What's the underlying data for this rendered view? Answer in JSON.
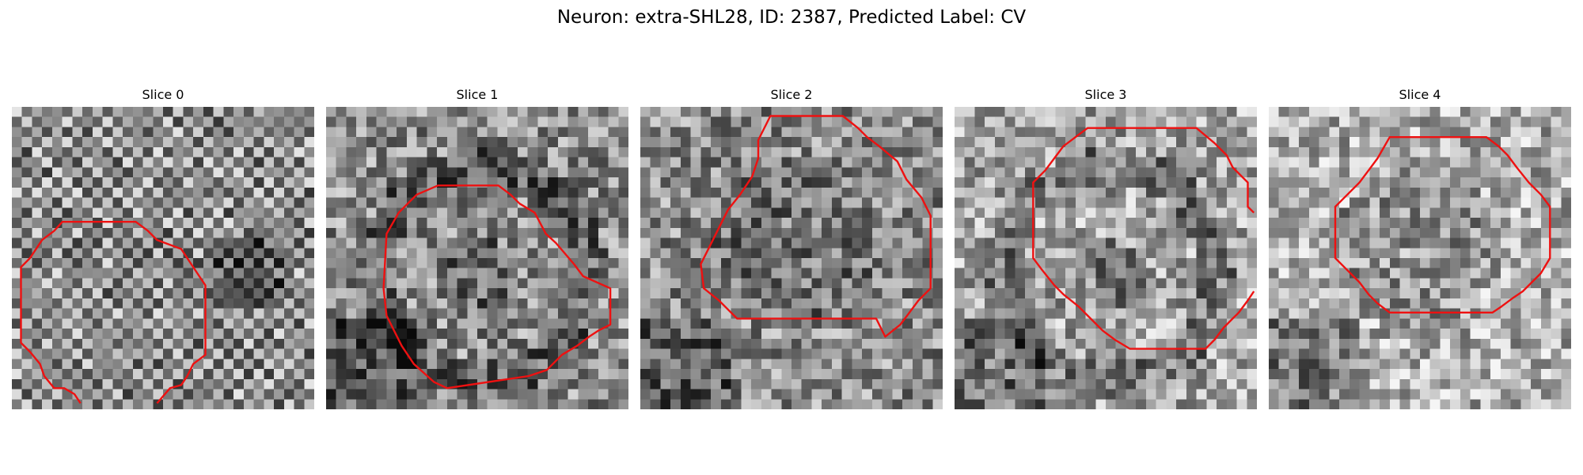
{
  "figure": {
    "title": "Neuron: extra-SHL28, ID: 2387, Predicted Label: CV"
  },
  "colors": {
    "contour": "#ee1111",
    "background": "#ffffff",
    "colormap": "gray"
  },
  "panels": [
    {
      "title": "Slice 0",
      "texture": "diagonal-checker",
      "contour_closed": false,
      "contour": [
        [
          0.227,
          0.98
        ],
        [
          0.207,
          0.95
        ],
        [
          0.173,
          0.93
        ],
        [
          0.14,
          0.93
        ],
        [
          0.107,
          0.89
        ],
        [
          0.093,
          0.85
        ],
        [
          0.06,
          0.81
        ],
        [
          0.03,
          0.78
        ],
        [
          0.03,
          0.53
        ],
        [
          0.06,
          0.5
        ],
        [
          0.1,
          0.44
        ],
        [
          0.14,
          0.41
        ],
        [
          0.167,
          0.38
        ],
        [
          0.2,
          0.38
        ],
        [
          0.41,
          0.38
        ],
        [
          0.45,
          0.41
        ],
        [
          0.48,
          0.44
        ],
        [
          0.56,
          0.47
        ],
        [
          0.6,
          0.53
        ],
        [
          0.64,
          0.59
        ],
        [
          0.64,
          0.82
        ],
        [
          0.6,
          0.85
        ],
        [
          0.58,
          0.89
        ],
        [
          0.56,
          0.92
        ],
        [
          0.523,
          0.93
        ],
        [
          0.48,
          0.98
        ]
      ]
    },
    {
      "title": "Slice 1",
      "texture": "ring",
      "contour_closed": true,
      "contour": [
        [
          0.37,
          0.26
        ],
        [
          0.57,
          0.26
        ],
        [
          0.61,
          0.29
        ],
        [
          0.64,
          0.32
        ],
        [
          0.69,
          0.35
        ],
        [
          0.727,
          0.42
        ],
        [
          0.76,
          0.45
        ],
        [
          0.82,
          0.52
        ],
        [
          0.85,
          0.56
        ],
        [
          0.94,
          0.6
        ],
        [
          0.94,
          0.72
        ],
        [
          0.9,
          0.74
        ],
        [
          0.87,
          0.76
        ],
        [
          0.83,
          0.79
        ],
        [
          0.78,
          0.82
        ],
        [
          0.73,
          0.87
        ],
        [
          0.67,
          0.89
        ],
        [
          0.4,
          0.93
        ],
        [
          0.357,
          0.91
        ],
        [
          0.29,
          0.85
        ],
        [
          0.25,
          0.79
        ],
        [
          0.2,
          0.69
        ],
        [
          0.19,
          0.6
        ],
        [
          0.2,
          0.42
        ],
        [
          0.24,
          0.35
        ],
        [
          0.27,
          0.32
        ],
        [
          0.3,
          0.29
        ]
      ]
    },
    {
      "title": "Slice 2",
      "texture": "blob",
      "contour_closed": true,
      "contour": [
        [
          0.43,
          0.03
        ],
        [
          0.67,
          0.03
        ],
        [
          0.72,
          0.07
        ],
        [
          0.75,
          0.1
        ],
        [
          0.79,
          0.13
        ],
        [
          0.85,
          0.18
        ],
        [
          0.88,
          0.24
        ],
        [
          0.93,
          0.3
        ],
        [
          0.96,
          0.36
        ],
        [
          0.96,
          0.6
        ],
        [
          0.92,
          0.64
        ],
        [
          0.89,
          0.68
        ],
        [
          0.86,
          0.72
        ],
        [
          0.81,
          0.76
        ],
        [
          0.78,
          0.7
        ],
        [
          0.32,
          0.7
        ],
        [
          0.26,
          0.64
        ],
        [
          0.21,
          0.6
        ],
        [
          0.2,
          0.52
        ],
        [
          0.23,
          0.46
        ],
        [
          0.26,
          0.4
        ],
        [
          0.29,
          0.34
        ],
        [
          0.33,
          0.29
        ],
        [
          0.37,
          0.23
        ],
        [
          0.39,
          0.17
        ],
        [
          0.39,
          0.11
        ]
      ]
    },
    {
      "title": "Slice 3",
      "texture": "ring-light",
      "contour_closed": false,
      "contour": [
        [
          0.99,
          0.35
        ],
        [
          0.97,
          0.33
        ],
        [
          0.97,
          0.25
        ],
        [
          0.92,
          0.2
        ],
        [
          0.9,
          0.16
        ],
        [
          0.86,
          0.12
        ],
        [
          0.8,
          0.07
        ],
        [
          0.44,
          0.07
        ],
        [
          0.4,
          0.1
        ],
        [
          0.36,
          0.13
        ],
        [
          0.33,
          0.17
        ],
        [
          0.3,
          0.21
        ],
        [
          0.26,
          0.25
        ],
        [
          0.26,
          0.5
        ],
        [
          0.29,
          0.54
        ],
        [
          0.33,
          0.59
        ],
        [
          0.36,
          0.62
        ],
        [
          0.41,
          0.66
        ],
        [
          0.45,
          0.7
        ],
        [
          0.49,
          0.74
        ],
        [
          0.53,
          0.77
        ],
        [
          0.58,
          0.8
        ],
        [
          0.83,
          0.8
        ],
        [
          0.86,
          0.77
        ],
        [
          0.89,
          0.73
        ],
        [
          0.92,
          0.7
        ],
        [
          0.94,
          0.68
        ],
        [
          0.97,
          0.64
        ],
        [
          0.99,
          0.61
        ]
      ]
    },
    {
      "title": "Slice 4",
      "texture": "blob-light",
      "contour_closed": true,
      "contour": [
        [
          0.4,
          0.1
        ],
        [
          0.72,
          0.1
        ],
        [
          0.76,
          0.13
        ],
        [
          0.79,
          0.16
        ],
        [
          0.82,
          0.2
        ],
        [
          0.86,
          0.25
        ],
        [
          0.9,
          0.29
        ],
        [
          0.93,
          0.33
        ],
        [
          0.93,
          0.5
        ],
        [
          0.9,
          0.55
        ],
        [
          0.87,
          0.58
        ],
        [
          0.84,
          0.61
        ],
        [
          0.81,
          0.63
        ],
        [
          0.77,
          0.66
        ],
        [
          0.74,
          0.68
        ],
        [
          0.4,
          0.68
        ],
        [
          0.36,
          0.65
        ],
        [
          0.33,
          0.62
        ],
        [
          0.3,
          0.58
        ],
        [
          0.26,
          0.54
        ],
        [
          0.22,
          0.5
        ],
        [
          0.22,
          0.33
        ],
        [
          0.26,
          0.29
        ],
        [
          0.3,
          0.25
        ],
        [
          0.33,
          0.21
        ],
        [
          0.36,
          0.17
        ]
      ]
    }
  ]
}
